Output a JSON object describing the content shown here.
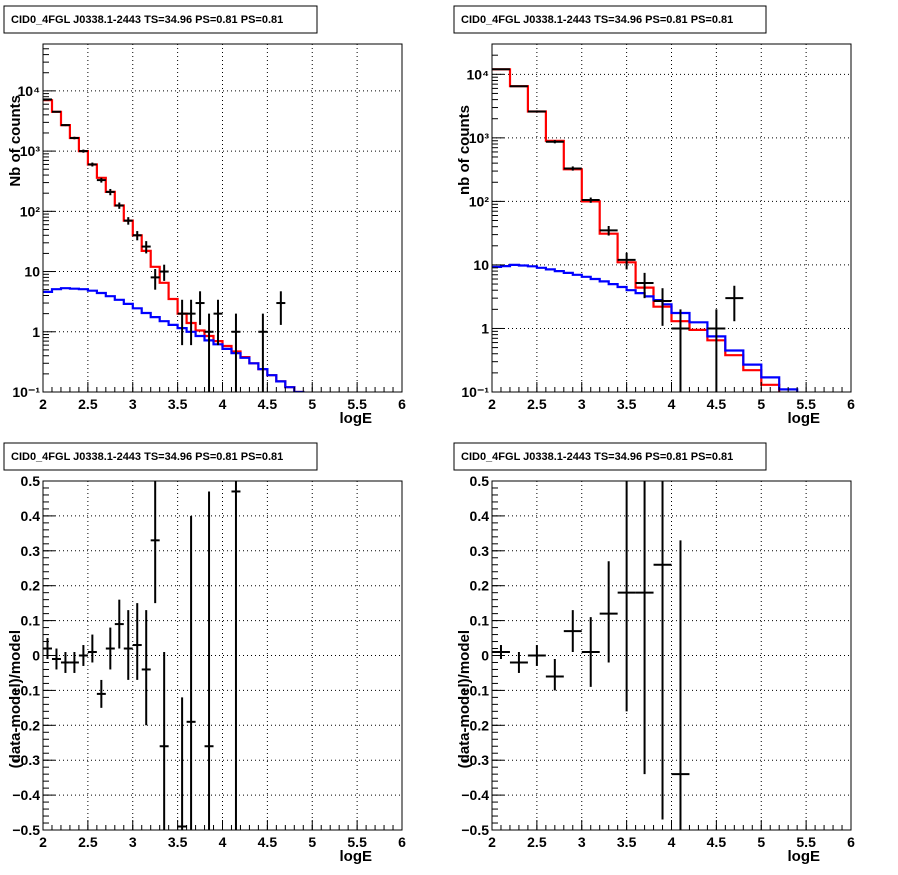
{
  "chart_data": [
    {
      "id": "tl",
      "type": "histogram",
      "title": "CID0_4FGL J0338.1-2443 TS=34.96 PS=0.81 PS=0.81",
      "xlabel": "logE",
      "ylabel": "Nb of counts",
      "xlim": [
        2,
        6
      ],
      "ylim": [
        0.1,
        60000
      ],
      "yscale": "log",
      "grid": true,
      "xticks": [
        2,
        2.5,
        3,
        3.5,
        4,
        4.5,
        5,
        5.5,
        6
      ],
      "xtick_labels": [
        "2",
        "2.5",
        "3",
        "3.5",
        "4",
        "4.5",
        "5",
        "5.5",
        "6"
      ],
      "yticks": [
        0.1,
        1,
        10,
        100,
        1000,
        10000
      ],
      "ytick_labels": [
        "10⁻¹",
        "1",
        "10",
        "10²",
        "10³",
        "10⁴"
      ],
      "series": [
        {
          "kind": "step",
          "color": "#ff0000",
          "edges": [
            2,
            2.1,
            2.2,
            2.3,
            2.4,
            2.5,
            2.6,
            2.7,
            2.8,
            2.9,
            3,
            3.1,
            3.2,
            3.3,
            3.4,
            3.5,
            3.6,
            3.7,
            3.8,
            3.9,
            4,
            4.1,
            4.2,
            4.3,
            4.4,
            4.5,
            4.6,
            4.7,
            4.8,
            4.9,
            5,
            5.1,
            5.2,
            5.3,
            5.4,
            5.5,
            5.6,
            5.7,
            5.8,
            5.9,
            6
          ],
          "values": [
            7000,
            4500,
            2700,
            1650,
            1000,
            600,
            360,
            210,
            125,
            70,
            40,
            22,
            12,
            6.5,
            3.5,
            2.0,
            1.4,
            1.05,
            0.85,
            0.7,
            0.58,
            0.47,
            0.38,
            0.3,
            0.24,
            0.19,
            0.15,
            0.12,
            0.1,
            0.08,
            0.07,
            0.07,
            0.07,
            0.07,
            0.07,
            0.07,
            0.07,
            0.07,
            0.07,
            0.07
          ]
        },
        {
          "kind": "step",
          "color": "#0000ff",
          "edges": [
            2,
            2.1,
            2.2,
            2.3,
            2.4,
            2.5,
            2.6,
            2.7,
            2.8,
            2.9,
            3,
            3.1,
            3.2,
            3.3,
            3.4,
            3.5,
            3.6,
            3.7,
            3.8,
            3.9,
            4,
            4.1,
            4.2,
            4.3,
            4.4,
            4.5,
            4.6,
            4.7,
            4.8,
            4.9,
            5,
            5.1,
            5.2,
            5.3,
            5.4,
            5.5,
            5.6,
            5.7,
            5.8,
            5.9,
            6
          ],
          "values": [
            4.6,
            5.1,
            5.3,
            5.2,
            5.1,
            4.8,
            4.4,
            3.9,
            3.4,
            2.9,
            2.45,
            2.05,
            1.75,
            1.5,
            1.3,
            1.15,
            1.0,
            0.85,
            0.72,
            0.62,
            0.52,
            0.44,
            0.37,
            0.3,
            0.24,
            0.19,
            0.15,
            0.12,
            0.1,
            0.08,
            0.07,
            0.07,
            0.07,
            0.07,
            0.07,
            0.07,
            0.07,
            0.07,
            0.07,
            0.07
          ]
        },
        {
          "kind": "points",
          "color": "#000000",
          "points": [
            {
              "x": 2.05,
              "y": 7200,
              "ylo": 7030,
              "yhi": 7370,
              "dx": 0.05
            },
            {
              "x": 2.15,
              "y": 4500,
              "ylo": 4370,
              "yhi": 4630,
              "dx": 0.05
            },
            {
              "x": 2.25,
              "y": 2700,
              "ylo": 2600,
              "yhi": 2800,
              "dx": 0.05
            },
            {
              "x": 2.35,
              "y": 1650,
              "ylo": 1570,
              "yhi": 1730,
              "dx": 0.05
            },
            {
              "x": 2.45,
              "y": 1000,
              "ylo": 940,
              "yhi": 1060,
              "dx": 0.05
            },
            {
              "x": 2.55,
              "y": 600,
              "ylo": 555,
              "yhi": 645,
              "dx": 0.05
            },
            {
              "x": 2.65,
              "y": 330,
              "ylo": 300,
              "yhi": 360,
              "dx": 0.05
            },
            {
              "x": 2.75,
              "y": 210,
              "ylo": 185,
              "yhi": 235,
              "dx": 0.05
            },
            {
              "x": 2.85,
              "y": 125,
              "ylo": 110,
              "yhi": 140,
              "dx": 0.05
            },
            {
              "x": 2.95,
              "y": 70,
              "ylo": 60,
              "yhi": 80,
              "dx": 0.05
            },
            {
              "x": 3.05,
              "y": 40,
              "ylo": 33,
              "yhi": 47,
              "dx": 0.05
            },
            {
              "x": 3.15,
              "y": 26,
              "ylo": 20,
              "yhi": 32,
              "dx": 0.05
            },
            {
              "x": 3.25,
              "y": 8,
              "ylo": 5,
              "yhi": 11,
              "dx": 0.05
            },
            {
              "x": 3.35,
              "y": 10,
              "ylo": 7,
              "yhi": 13,
              "dx": 0.05
            },
            {
              "x": 3.55,
              "y": 2,
              "ylo": 0.6,
              "yhi": 3.4,
              "dx": 0.05
            },
            {
              "x": 3.65,
              "y": 2,
              "ylo": 0.6,
              "yhi": 3.4,
              "dx": 0.05
            },
            {
              "x": 3.75,
              "y": 3,
              "ylo": 1.3,
              "yhi": 4.7,
              "dx": 0.05
            },
            {
              "x": 3.85,
              "y": 1,
              "ylo": 0.1,
              "yhi": 2.0,
              "dx": 0.05
            },
            {
              "x": 3.95,
              "y": 2,
              "ylo": 0.6,
              "yhi": 3.4,
              "dx": 0.05
            },
            {
              "x": 4.15,
              "y": 1,
              "ylo": 0.1,
              "yhi": 2.0,
              "dx": 0.05
            },
            {
              "x": 4.45,
              "y": 1,
              "ylo": 0.1,
              "yhi": 2.0,
              "dx": 0.05
            },
            {
              "x": 4.65,
              "y": 3,
              "ylo": 1.3,
              "yhi": 4.7,
              "dx": 0.05
            }
          ]
        }
      ]
    },
    {
      "id": "tr",
      "type": "histogram",
      "title": "CID0_4FGL J0338.1-2443 TS=34.96 PS=0.81 PS=0.81",
      "xlabel": "logE",
      "ylabel": "nb of counts",
      "xlim": [
        2,
        6
      ],
      "ylim": [
        0.1,
        30000
      ],
      "yscale": "log",
      "grid": true,
      "xticks": [
        2,
        2.5,
        3,
        3.5,
        4,
        4.5,
        5,
        5.5,
        6
      ],
      "xtick_labels": [
        "2",
        "2.5",
        "3",
        "3.5",
        "4",
        "4.5",
        "5",
        "5.5",
        "6"
      ],
      "yticks": [
        0.1,
        1,
        10,
        100,
        1000,
        10000
      ],
      "ytick_labels": [
        "10⁻¹",
        "1",
        "10",
        "10²",
        "10³",
        "10⁴"
      ],
      "series": [
        {
          "kind": "step",
          "color": "#ff0000",
          "edges": [
            2,
            2.2,
            2.4,
            2.6,
            2.8,
            3,
            3.2,
            3.4,
            3.6,
            3.8,
            4,
            4.2,
            4.4,
            4.6,
            4.8,
            5,
            5.2,
            5.4,
            5.6,
            5.8,
            6
          ],
          "values": [
            12000,
            6500,
            2600,
            900,
            320,
            100,
            31,
            11,
            4.4,
            2.2,
            1.3,
            0.95,
            0.65,
            0.38,
            0.22,
            0.13,
            0.09,
            0.07,
            0.07,
            0.07
          ]
        },
        {
          "kind": "step",
          "color": "#0000ff",
          "edges": [
            2,
            2.1,
            2.2,
            2.3,
            2.4,
            2.5,
            2.6,
            2.7,
            2.8,
            2.9,
            3,
            3.1,
            3.2,
            3.3,
            3.4,
            3.5,
            3.6,
            3.7,
            3.8,
            3.9,
            4,
            4.2,
            4.4,
            4.6,
            4.8,
            5,
            5.2,
            5.4,
            5.6,
            5.8,
            6
          ],
          "values": [
            9.3,
            9.6,
            10,
            9.8,
            9.5,
            9.0,
            8.5,
            8.0,
            7.5,
            7.0,
            6.5,
            6.0,
            5.5,
            5.0,
            4.5,
            4.0,
            3.6,
            3.2,
            2.8,
            2.4,
            1.75,
            1.25,
            0.75,
            0.45,
            0.27,
            0.17,
            0.11,
            0.08,
            0.07,
            0.07
          ]
        },
        {
          "kind": "points",
          "color": "#000000",
          "points": [
            {
              "x": 2.1,
              "y": 12000,
              "ylo": 11800,
              "yhi": 12200,
              "dx": 0.1
            },
            {
              "x": 2.3,
              "y": 6500,
              "ylo": 6350,
              "yhi": 6650,
              "dx": 0.1
            },
            {
              "x": 2.5,
              "y": 2600,
              "ylo": 2500,
              "yhi": 2700,
              "dx": 0.1
            },
            {
              "x": 2.7,
              "y": 870,
              "ylo": 820,
              "yhi": 920,
              "dx": 0.1
            },
            {
              "x": 2.9,
              "y": 330,
              "ylo": 305,
              "yhi": 355,
              "dx": 0.1
            },
            {
              "x": 3.1,
              "y": 105,
              "ylo": 95,
              "yhi": 115,
              "dx": 0.1
            },
            {
              "x": 3.3,
              "y": 35,
              "ylo": 29,
              "yhi": 41,
              "dx": 0.1
            },
            {
              "x": 3.5,
              "y": 12,
              "ylo": 8.5,
              "yhi": 15.5,
              "dx": 0.1
            },
            {
              "x": 3.7,
              "y": 5.2,
              "ylo": 3.0,
              "yhi": 7.5,
              "dx": 0.1
            },
            {
              "x": 3.9,
              "y": 2.7,
              "ylo": 1.1,
              "yhi": 4.3,
              "dx": 0.1
            },
            {
              "x": 4.1,
              "y": 1,
              "ylo": 0.1,
              "yhi": 2.0,
              "dx": 0.1
            },
            {
              "x": 4.5,
              "y": 1,
              "ylo": 0.1,
              "yhi": 2.0,
              "dx": 0.1
            },
            {
              "x": 4.7,
              "y": 3,
              "ylo": 1.3,
              "yhi": 4.7,
              "dx": 0.1
            }
          ]
        }
      ]
    },
    {
      "id": "bl",
      "type": "scatter",
      "title": "CID0_4FGL J0338.1-2443 TS=34.96 PS=0.81 PS=0.81",
      "xlabel": "logE",
      "ylabel": "(data-model)/model",
      "xlim": [
        2,
        6
      ],
      "ylim": [
        -0.5,
        0.5
      ],
      "yscale": "linear",
      "grid": true,
      "xticks": [
        2,
        2.5,
        3,
        3.5,
        4,
        4.5,
        5,
        5.5,
        6
      ],
      "xtick_labels": [
        "2",
        "2.5",
        "3",
        "3.5",
        "4",
        "4.5",
        "5",
        "5.5",
        "6"
      ],
      "yticks": [
        -0.5,
        -0.4,
        -0.3,
        -0.2,
        -0.1,
        0,
        0.1,
        0.2,
        0.3,
        0.4,
        0.5
      ],
      "ytick_labels": [
        "−0.5",
        "−0.4",
        "−0.3",
        "−0.2",
        "−0.1",
        "0",
        "0.1",
        "0.2",
        "0.3",
        "0.4",
        "0.5"
      ],
      "series": [
        {
          "kind": "points",
          "color": "#000000",
          "points": [
            {
              "x": 2.05,
              "y": 0.02,
              "ylo": -0.01,
              "yhi": 0.05,
              "dx": 0.05
            },
            {
              "x": 2.15,
              "y": -0.01,
              "ylo": -0.04,
              "yhi": 0.02,
              "dx": 0.05
            },
            {
              "x": 2.25,
              "y": -0.02,
              "ylo": -0.05,
              "yhi": 0.01,
              "dx": 0.05
            },
            {
              "x": 2.35,
              "y": -0.02,
              "ylo": -0.05,
              "yhi": 0.01,
              "dx": 0.05
            },
            {
              "x": 2.45,
              "y": 0.0,
              "ylo": -0.03,
              "yhi": 0.03,
              "dx": 0.05
            },
            {
              "x": 2.55,
              "y": 0.01,
              "ylo": -0.02,
              "yhi": 0.06,
              "dx": 0.05
            },
            {
              "x": 2.65,
              "y": -0.11,
              "ylo": -0.15,
              "yhi": -0.07,
              "dx": 0.05
            },
            {
              "x": 2.75,
              "y": 0.02,
              "ylo": -0.04,
              "yhi": 0.08,
              "dx": 0.05
            },
            {
              "x": 2.85,
              "y": 0.09,
              "ylo": 0.02,
              "yhi": 0.16,
              "dx": 0.05
            },
            {
              "x": 2.95,
              "y": 0.02,
              "ylo": -0.07,
              "yhi": 0.13,
              "dx": 0.05
            },
            {
              "x": 3.05,
              "y": 0.03,
              "ylo": -0.07,
              "yhi": 0.15,
              "dx": 0.05
            },
            {
              "x": 3.15,
              "y": -0.04,
              "ylo": -0.2,
              "yhi": 0.13,
              "dx": 0.05
            },
            {
              "x": 3.25,
              "y": 0.33,
              "ylo": 0.15,
              "yhi": 0.5,
              "dx": 0.05
            },
            {
              "x": 3.35,
              "y": -0.26,
              "ylo": -0.5,
              "yhi": 0.01,
              "dx": 0.05
            },
            {
              "x": 3.55,
              "y": -0.49,
              "ylo": -0.5,
              "yhi": -0.12,
              "dx": 0.05
            },
            {
              "x": 3.65,
              "y": -0.19,
              "ylo": -0.5,
              "yhi": 0.4,
              "dx": 0.05
            },
            {
              "x": 3.85,
              "y": -0.26,
              "ylo": -0.5,
              "yhi": 0.47,
              "dx": 0.05
            },
            {
              "x": 4.15,
              "y": 0.47,
              "ylo": -0.5,
              "yhi": 0.5,
              "dx": 0.05
            }
          ]
        }
      ]
    },
    {
      "id": "br",
      "type": "scatter",
      "title": "CID0_4FGL J0338.1-2443 TS=34.96 PS=0.81 PS=0.81",
      "xlabel": "logE",
      "ylabel": "(data-model)/model",
      "xlim": [
        2,
        6
      ],
      "ylim": [
        -0.5,
        0.5
      ],
      "yscale": "linear",
      "grid": true,
      "xticks": [
        2,
        2.5,
        3,
        3.5,
        4,
        4.5,
        5,
        5.5,
        6
      ],
      "xtick_labels": [
        "2",
        "2.5",
        "3",
        "3.5",
        "4",
        "4.5",
        "5",
        "5.5",
        "6"
      ],
      "yticks": [
        -0.5,
        -0.4,
        -0.3,
        -0.2,
        -0.1,
        0,
        0.1,
        0.2,
        0.3,
        0.4,
        0.5
      ],
      "ytick_labels": [
        "−0.5",
        "−0.4",
        "−0.3",
        "−0.2",
        "−0.1",
        "0",
        "0.1",
        "0.2",
        "0.3",
        "0.4",
        "0.5"
      ],
      "series": [
        {
          "kind": "points",
          "color": "#000000",
          "points": [
            {
              "x": 2.1,
              "y": 0.01,
              "ylo": -0.01,
              "yhi": 0.03,
              "dx": 0.1
            },
            {
              "x": 2.3,
              "y": -0.02,
              "ylo": -0.05,
              "yhi": 0.01,
              "dx": 0.1
            },
            {
              "x": 2.5,
              "y": 0.0,
              "ylo": -0.03,
              "yhi": 0.03,
              "dx": 0.1
            },
            {
              "x": 2.7,
              "y": -0.06,
              "ylo": -0.1,
              "yhi": -0.01,
              "dx": 0.1
            },
            {
              "x": 2.9,
              "y": 0.07,
              "ylo": 0.01,
              "yhi": 0.13,
              "dx": 0.1
            },
            {
              "x": 3.1,
              "y": 0.01,
              "ylo": -0.09,
              "yhi": 0.11,
              "dx": 0.1
            },
            {
              "x": 3.3,
              "y": 0.12,
              "ylo": -0.02,
              "yhi": 0.27,
              "dx": 0.1
            },
            {
              "x": 3.5,
              "y": 0.18,
              "ylo": -0.16,
              "yhi": 0.5,
              "dx": 0.1
            },
            {
              "x": 3.7,
              "y": 0.18,
              "ylo": -0.34,
              "yhi": 0.5,
              "dx": 0.1
            },
            {
              "x": 3.9,
              "y": 0.26,
              "ylo": -0.47,
              "yhi": 0.5,
              "dx": 0.1
            },
            {
              "x": 4.1,
              "y": -0.34,
              "ylo": -0.5,
              "yhi": 0.33,
              "dx": 0.1
            }
          ]
        }
      ]
    }
  ]
}
